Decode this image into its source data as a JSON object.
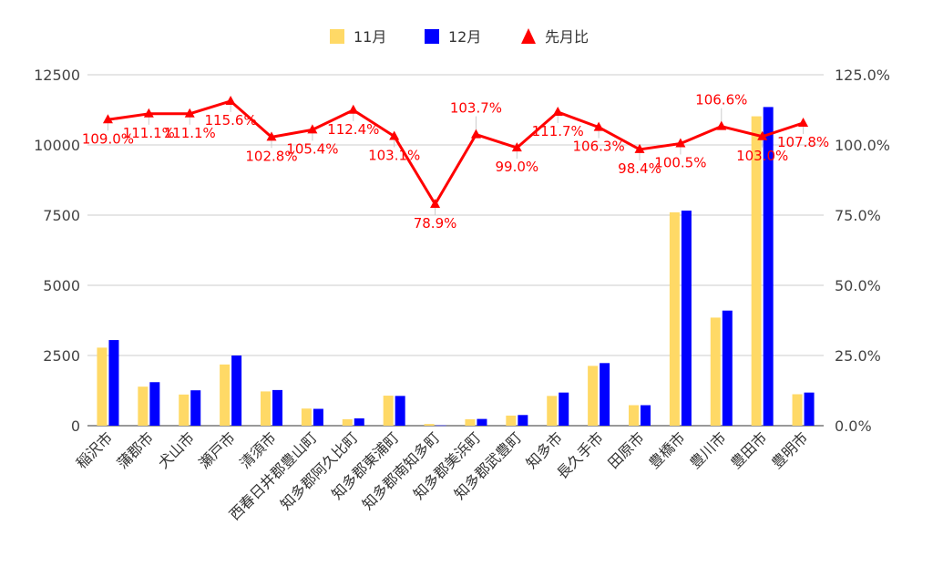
{
  "chart_data": {
    "type": "bar",
    "title": "",
    "xlabel": "",
    "ylabel": "",
    "ylim": [
      0,
      12500
    ],
    "y2lim": [
      0,
      1.25
    ],
    "y_ticks": [
      "0",
      "2500",
      "5000",
      "7500",
      "10000",
      "12500"
    ],
    "y2_ticks": [
      "0.0%",
      "25.0%",
      "50.0%",
      "75.0%",
      "100.0%",
      "125.0%"
    ],
    "grid": true,
    "legend_position": "top",
    "categories": [
      "稲沢市",
      "蒲郡市",
      "犬山市",
      "瀬戸市",
      "清須市",
      "西春日井郡豊山町",
      "知多郡阿久比町",
      "知多郡東浦町",
      "知多郡南知多町",
      "知多郡美浜町",
      "知多郡武豊町",
      "知多市",
      "長久手市",
      "田原市",
      "豊橋市",
      "豊川市",
      "豊田市",
      "豊明市"
    ],
    "series": [
      {
        "name": "11月",
        "type": "bar",
        "color": "#ffd966",
        "values": [
          2780,
          1390,
          1110,
          2180,
          1220,
          610,
          230,
          1070,
          60,
          230,
          360,
          1060,
          2130,
          730,
          7600,
          3850,
          11020,
          1120
        ]
      },
      {
        "name": "12月",
        "type": "bar",
        "color": "#0000ff",
        "values": [
          3050,
          1550,
          1260,
          2500,
          1270,
          600,
          260,
          1060,
          10,
          240,
          380,
          1180,
          2230,
          730,
          7660,
          4100,
          11350,
          1180
        ]
      },
      {
        "name": "先月比",
        "type": "line",
        "axis": "right",
        "color": "#ff0000",
        "marker": "triangle",
        "values": [
          1.09,
          1.111,
          1.111,
          1.156,
          1.028,
          1.054,
          1.124,
          1.031,
          0.789,
          1.037,
          0.99,
          1.117,
          1.063,
          0.984,
          1.005,
          1.066,
          1.03,
          1.078
        ],
        "labels": [
          "109.0%",
          "111.1%",
          "111.1%",
          "115.6%",
          "102.8%",
          "105.4%",
          "112.4%",
          "103.1%",
          "78.9%",
          "103.7%",
          "99.0%",
          "111.7%",
          "106.3%",
          "98.4%",
          "100.5%",
          "106.6%",
          "103.0%",
          "107.8%"
        ],
        "label_positions": [
          "below",
          "below",
          "below",
          "below",
          "below",
          "below",
          "below",
          "below",
          "below",
          "above",
          "below",
          "below",
          "below",
          "below",
          "below",
          "above",
          "below",
          "below"
        ]
      }
    ]
  }
}
